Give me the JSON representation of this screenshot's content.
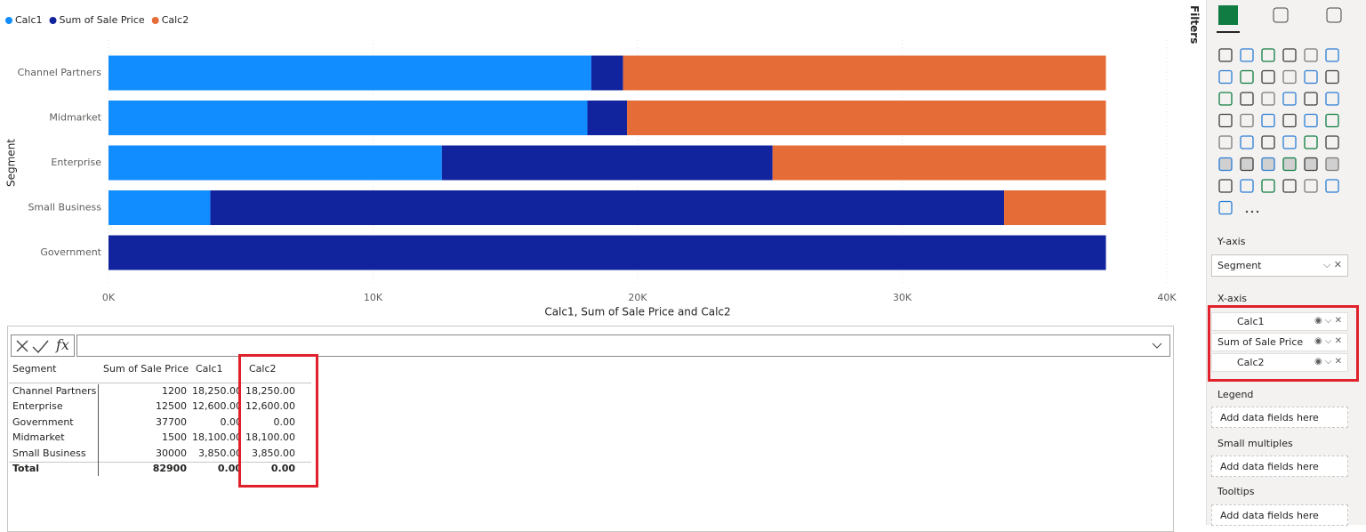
{
  "chart_data": {
    "type": "stacked-bar-horizontal",
    "y_axis_title": "Segment",
    "x_axis_title": "Calc1, Sum of Sale Price and Calc2",
    "categories": [
      "Channel Partners",
      "Midmarket",
      "Enterprise",
      "Small Business",
      "Government"
    ],
    "series": [
      {
        "name": "Calc1",
        "color": "#118DFF",
        "values": [
          18250,
          18100,
          12600,
          3850,
          0
        ]
      },
      {
        "name": "Sum of Sale Price",
        "color": "#12239E",
        "values": [
          1200,
          1500,
          12500,
          30000,
          37700
        ]
      },
      {
        "name": "Calc2",
        "color": "#E66C37",
        "values": [
          18250,
          18100,
          12600,
          3850,
          0
        ]
      }
    ],
    "xlim": [
      0,
      40000
    ],
    "xticks": [
      {
        "value": 0,
        "label": "0K"
      },
      {
        "value": 10000,
        "label": "10K"
      },
      {
        "value": 20000,
        "label": "20K"
      },
      {
        "value": 30000,
        "label": "30K"
      },
      {
        "value": 40000,
        "label": "40K"
      }
    ],
    "grid": true,
    "legend": "top-left"
  },
  "formula_bar": {
    "label": "fx"
  },
  "table": {
    "columns": [
      "Segment",
      "Sum of Sale Price",
      "Calc1",
      "Calc2"
    ],
    "rows": [
      [
        "Channel Partners",
        "1200",
        "18,250.00",
        "18,250.00"
      ],
      [
        "Enterprise",
        "12500",
        "12,600.00",
        "12,600.00"
      ],
      [
        "Government",
        "37700",
        "0.00",
        "0.00"
      ],
      [
        "Midmarket",
        "1500",
        "18,100.00",
        "18,100.00"
      ],
      [
        "Small Business",
        "30000",
        "3,850.00",
        "3,850.00"
      ]
    ],
    "total": [
      "Total",
      "82900",
      "0.00",
      "0.00"
    ]
  },
  "filters_pane": {
    "title": "Filters"
  },
  "fields": {
    "y_axis": {
      "title": "Y-axis",
      "fields": [
        "Segment"
      ]
    },
    "x_axis": {
      "title": "X-axis",
      "fields": [
        "Calc1",
        "Sum of Sale Price",
        "Calc2"
      ]
    },
    "legend": {
      "title": "Legend",
      "placeholder": "Add data fields here"
    },
    "small_multiples": {
      "title": "Small multiples",
      "placeholder": "Add data fields here"
    },
    "tooltips": {
      "title": "Tooltips",
      "placeholder": "Add data fields here"
    }
  }
}
